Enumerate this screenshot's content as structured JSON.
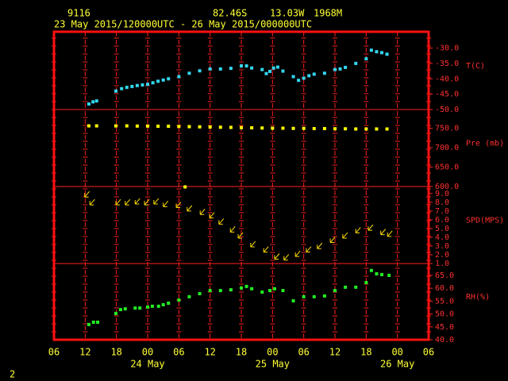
{
  "header": {
    "station": "9116",
    "lat": "82.46S",
    "lon": "13.03W",
    "elev": "1968M",
    "period": "23 May 2015/120000UTC - 26 May 2015/000000UTC",
    "page": "2"
  },
  "chart_data": [
    {
      "type": "scatter",
      "ylabel": "T(C)",
      "color": "#33d6ee",
      "ylim": [
        -50,
        -24.7
      ],
      "yticks": [
        {
          "value": -30,
          "label": "-30.0"
        },
        {
          "value": -35,
          "label": "-35.0"
        },
        {
          "value": -40,
          "label": "-40.0"
        },
        {
          "value": -45,
          "label": "-45.0"
        },
        {
          "value": -50,
          "label": "-50.0"
        }
      ],
      "x": [
        6.7,
        7.5,
        8.2,
        11.9,
        13,
        14,
        15,
        16,
        17,
        18,
        19,
        20,
        21,
        22,
        24,
        26,
        28,
        30,
        32,
        34,
        36,
        37,
        38,
        40,
        40.8,
        41.5,
        42.2,
        43,
        44,
        46,
        47,
        48,
        49,
        50,
        52,
        54,
        55,
        56,
        58,
        60,
        61,
        62,
        63,
        64
      ],
      "values": [
        -48.2,
        -47.5,
        -47.2,
        -44,
        -43.2,
        -42.8,
        -42.5,
        -42.2,
        -42,
        -41.8,
        -41.3,
        -40.8,
        -40.4,
        -40,
        -39.3,
        -38.2,
        -37.4,
        -36.8,
        -36.8,
        -36.6,
        -35.8,
        -35.8,
        -36.5,
        -37,
        -38.3,
        -37.6,
        -36.5,
        -36.2,
        -37.5,
        -39.3,
        -40.5,
        -39.8,
        -39,
        -38.5,
        -38.2,
        -37,
        -36.8,
        -36.3,
        -35,
        -33.5,
        -30.7,
        -31.2,
        -31.5,
        -32
      ]
    },
    {
      "type": "scatter",
      "ylabel": "Pre (mb)",
      "color": "#ffff00",
      "ylim": [
        600,
        798
      ],
      "yticks": [
        {
          "value": 750,
          "label": "750.0"
        },
        {
          "value": 700,
          "label": "700.0"
        },
        {
          "value": 650,
          "label": "650.0"
        },
        {
          "value": 600,
          "label": "600.0"
        }
      ],
      "x": [
        6.7,
        8.2,
        11.9,
        14,
        16,
        18,
        20,
        22,
        24,
        25.2,
        26,
        28,
        30,
        32,
        34,
        36,
        38,
        40,
        42,
        44,
        46,
        48,
        50,
        52,
        54,
        56,
        58,
        60,
        62,
        64
      ],
      "values": [
        756,
        756,
        756,
        756,
        755.5,
        755.5,
        755,
        755,
        754.5,
        599,
        754,
        753.5,
        753,
        752.5,
        752,
        751.5,
        751,
        750.5,
        750,
        750,
        749.5,
        749.5,
        749,
        749,
        748.5,
        748.5,
        748,
        748,
        748,
        748
      ]
    },
    {
      "type": "wind",
      "ylabel": "SPD(MPS)",
      "color": "#ffdd00",
      "ylim": [
        1,
        9.8
      ],
      "yticks": [
        {
          "value": 9,
          "label": "9.0"
        },
        {
          "value": 8,
          "label": "8.0"
        },
        {
          "value": 7,
          "label": "7.0"
        },
        {
          "value": 6,
          "label": "6.0"
        },
        {
          "value": 5,
          "label": "5.0"
        },
        {
          "value": 4,
          "label": "4.0"
        },
        {
          "value": 3,
          "label": "3.0"
        },
        {
          "value": 2,
          "label": "2.0"
        },
        {
          "value": 1,
          "label": "1.0"
        }
      ],
      "x": [
        5.9,
        6.9,
        11.9,
        13.7,
        15.6,
        17.4,
        19.2,
        21,
        23.5,
        25.6,
        28.1,
        29.9,
        31.7,
        33.9,
        35.4,
        37.8,
        40.3,
        42.4,
        44.2,
        46.4,
        48.5,
        50.6,
        53.1,
        55.5,
        58,
        60.4,
        62.8,
        64.1
      ],
      "values": [
        8.6,
        7.7,
        7.7,
        7.7,
        7.8,
        7.7,
        7.8,
        7.5,
        7.4,
        7,
        6.6,
        6.2,
        5.5,
        4.6,
        3.9,
        2.9,
        2.3,
        1.5,
        1.4,
        1.8,
        2.3,
        2.7,
        3.4,
        3.9,
        4.5,
        4.8,
        4.3,
        4.1
      ]
    },
    {
      "type": "scatter",
      "ylabel": "RH(%)",
      "color": "#22ee22",
      "ylim": [
        40,
        69.6
      ],
      "yticks": [
        {
          "value": 65,
          "label": "65.0"
        },
        {
          "value": 60,
          "label": "60.0"
        },
        {
          "value": 55,
          "label": "55.0"
        },
        {
          "value": 50,
          "label": "50.0"
        },
        {
          "value": 45,
          "label": "45.0"
        },
        {
          "value": 40,
          "label": "40.0"
        }
      ],
      "x": [
        6.7,
        7.6,
        8.4,
        11.9,
        12.8,
        13.7,
        15.6,
        16.5,
        18,
        18.9,
        20.1,
        21,
        22,
        24,
        26,
        28,
        30,
        32,
        34,
        36,
        37,
        38,
        40,
        41.5,
        42.4,
        44,
        46,
        48,
        50,
        52,
        54,
        56,
        58,
        60,
        61,
        62,
        63,
        64.4
      ],
      "values": [
        45.9,
        46.8,
        46.8,
        50.2,
        51.7,
        52,
        52.3,
        52.3,
        52.7,
        53,
        53,
        53.6,
        54.2,
        55.4,
        56.7,
        57.9,
        59.1,
        59.1,
        59.4,
        60.1,
        60.7,
        59.8,
        58.5,
        59.1,
        59.8,
        59.1,
        55.1,
        56.7,
        56.7,
        57,
        59.1,
        60.4,
        60.4,
        62.2,
        66.9,
        65.6,
        65.3,
        65
      ],
      "xlim": [
        0,
        72
      ],
      "xticks": [
        {
          "value": 0,
          "label": "06"
        },
        {
          "value": 6,
          "label": "12"
        },
        {
          "value": 12,
          "label": "18"
        },
        {
          "value": 18,
          "label": "00"
        },
        {
          "value": 24,
          "label": "06"
        },
        {
          "value": 30,
          "label": "12"
        },
        {
          "value": 36,
          "label": "18"
        },
        {
          "value": 42,
          "label": "00"
        },
        {
          "value": 48,
          "label": "06"
        },
        {
          "value": 54,
          "label": "12"
        },
        {
          "value": 60,
          "label": "18"
        },
        {
          "value": 66,
          "label": "00"
        },
        {
          "value": 72,
          "label": "06"
        }
      ],
      "date_ticks": [
        {
          "value": 18,
          "label": "24 May"
        },
        {
          "value": 42,
          "label": "25 May"
        },
        {
          "value": 66,
          "label": "26 May"
        }
      ]
    }
  ]
}
